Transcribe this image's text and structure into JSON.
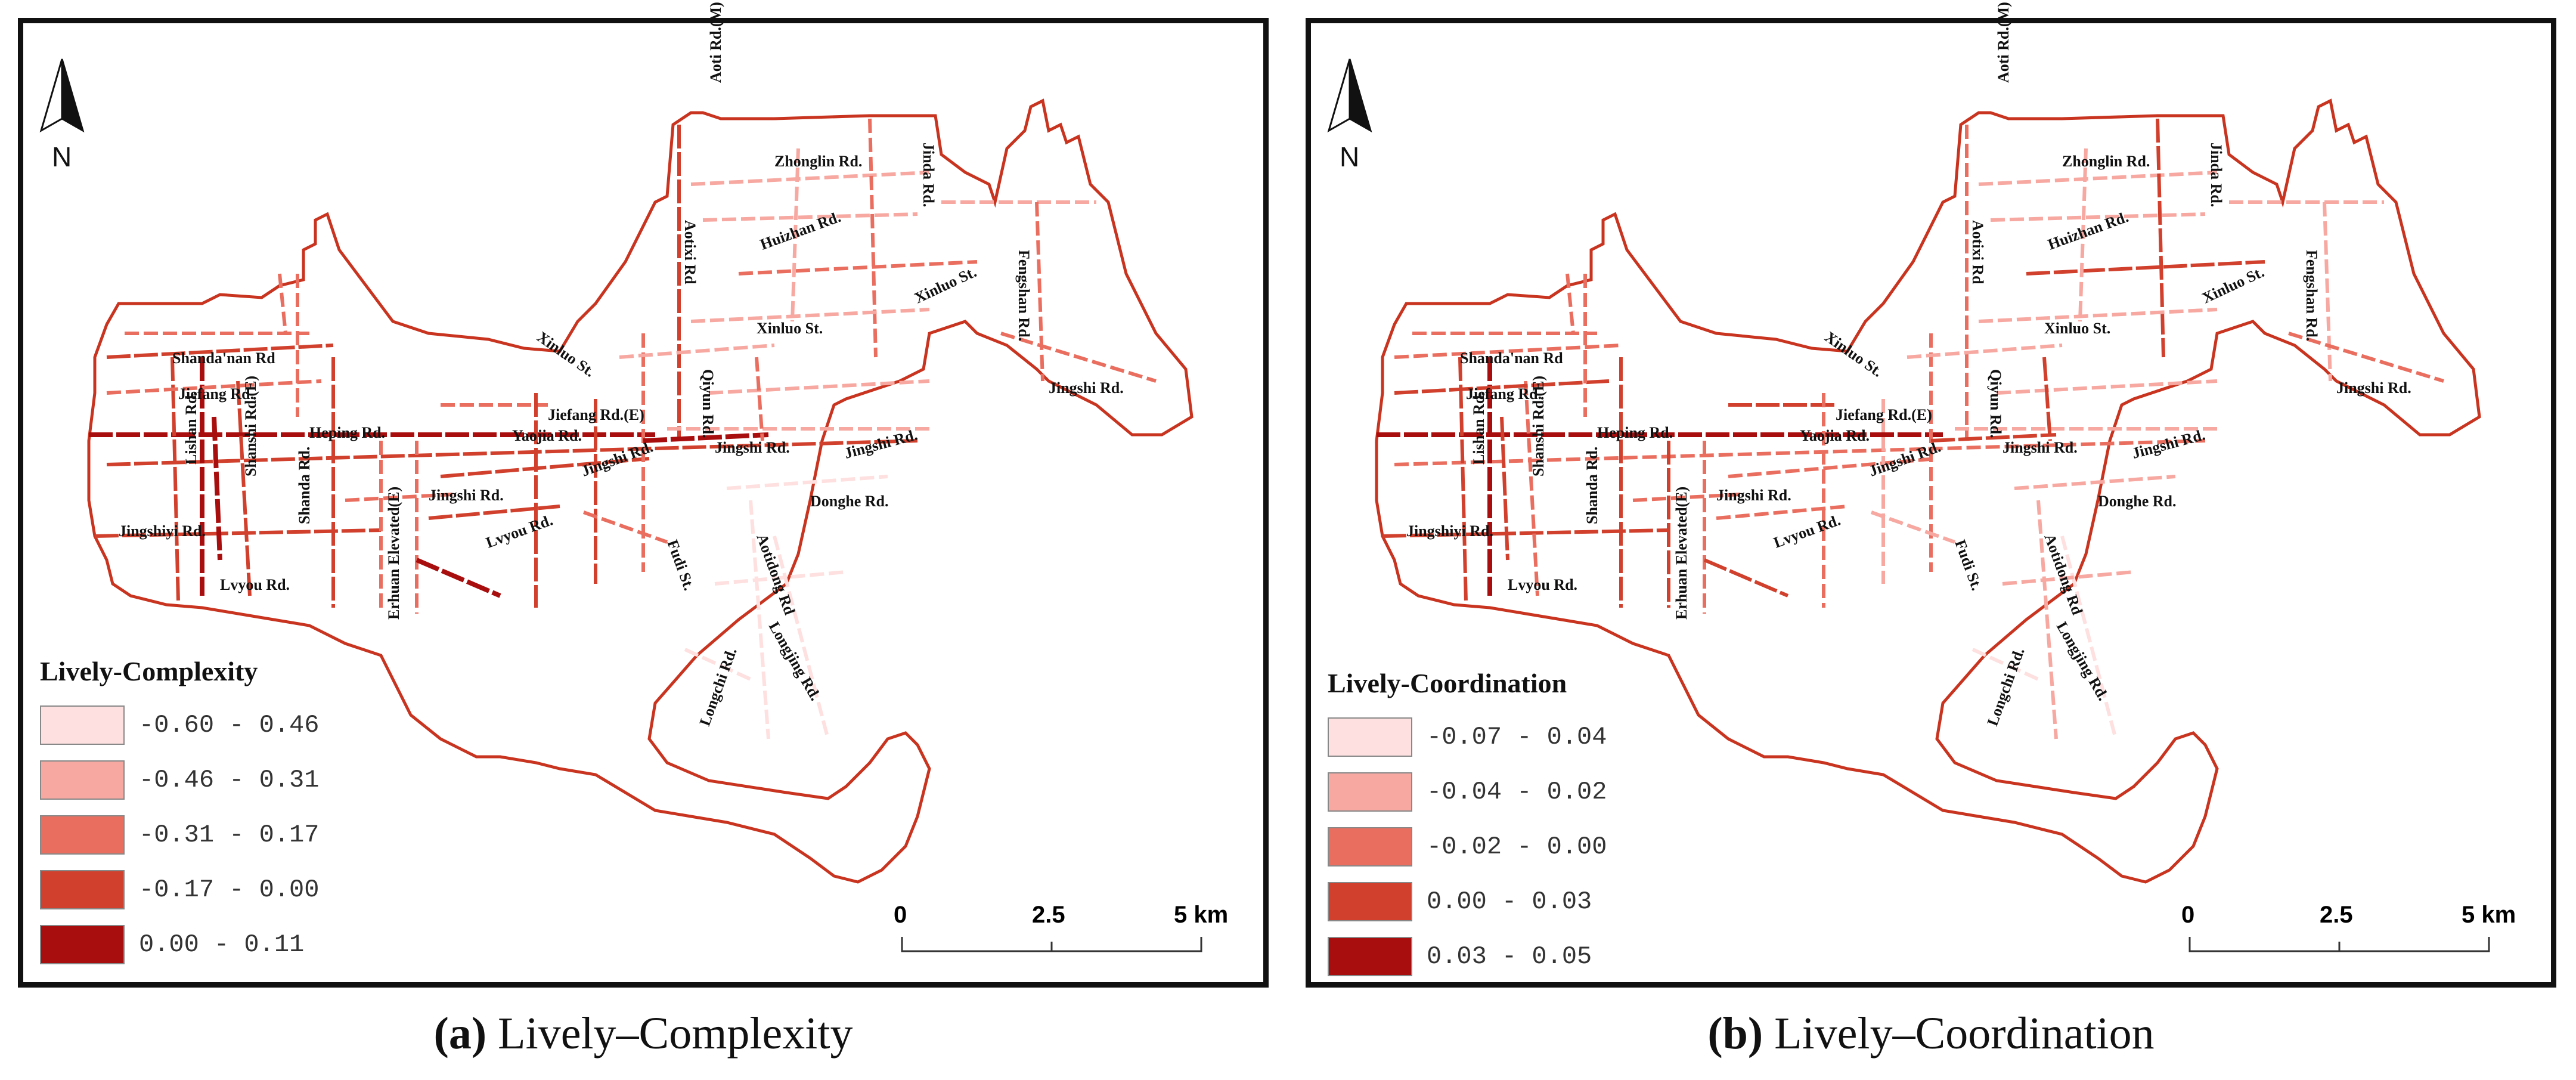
{
  "panels": [
    {
      "id": "a",
      "legend_title": "Lively-Complexity",
      "classes": [
        {
          "label": "-0.60 - 0.46",
          "color": "#fde0df"
        },
        {
          "label": "-0.46 - 0.31",
          "color": "#f6a8a1"
        },
        {
          "label": "-0.31 - 0.17",
          "color": "#ea6e5f"
        },
        {
          "label": "-0.17 - 0.00",
          "color": "#d0402c"
        },
        {
          "label": "0.00 - 0.11",
          "color": "#a90e0e"
        }
      ],
      "caption_letter": "(a)",
      "caption_text": " Lively–Complexity"
    },
    {
      "id": "b",
      "legend_title": "Lively-Coordination",
      "classes": [
        {
          "label": "-0.07 - 0.04",
          "color": "#fde0df"
        },
        {
          "label": "-0.04 - 0.02",
          "color": "#f6a8a1"
        },
        {
          "label": "-0.02 - 0.00",
          "color": "#ea6e5f"
        },
        {
          "label": "0.00 - 0.03",
          "color": "#d0402c"
        },
        {
          "label": "0.03 - 0.05",
          "color": "#a90e0e"
        }
      ],
      "caption_letter": "(b)",
      "caption_text": " Lively–Coordination"
    }
  ],
  "north_arrow_label": "N",
  "scale_bar": {
    "ticks": [
      "0",
      "2.5",
      "5 km"
    ]
  },
  "road_labels": [
    "Aoti Rd.(M)",
    "Zhonglin Rd.",
    "Jinda Rd.",
    "Aotixi Rd",
    "Huizhan Rd.",
    "Fengshan Rd.",
    "Xinluo St.",
    "Xinluo St.",
    "Shanda'nan Rd",
    "Xinluo St.",
    "Qiyun Rd.",
    "Jingshi Rd.",
    "Jiefang Rd.",
    "Jiefang Rd.(E)",
    "Heping Rd.",
    "Yaojia Rd.",
    "Jingshi Rd.",
    "Jingshi Rd.",
    "Lishan Rd.",
    "Jingshi Rd.",
    "Donghe Rd.",
    "Shanshi Rd.(E)",
    "Shanda Rd.",
    "Jingshi Rd.",
    "Jingshiyi Rd.",
    "Erhuan Elevated(E)",
    "Lvyou Rd.",
    "Fudi St.",
    "Lvyou Rd.",
    "Aotidong Rd",
    "Longjing Rd.",
    "Longchi Rd."
  ],
  "colors": {
    "boundary": "#c8341f",
    "frame": "#111111"
  }
}
